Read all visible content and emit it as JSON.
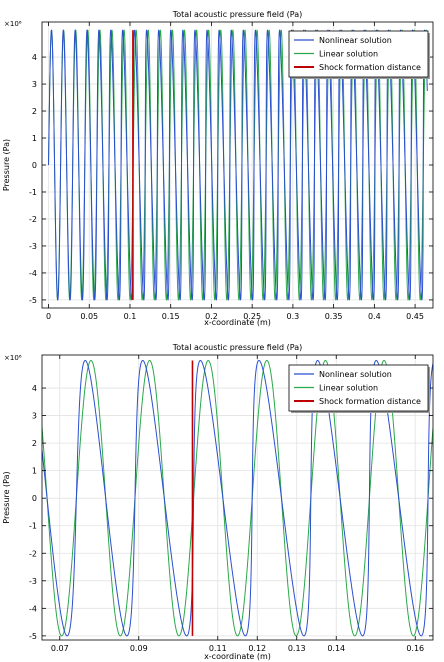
{
  "chart_data": [
    {
      "type": "line",
      "title": "Total acoustic pressure field (Pa)",
      "xlabel": "x-coordinate (m)",
      "ylabel": "Pressure (Pa)",
      "y_multiplier": "×10⁶",
      "xlim": [
        -0.008,
        0.472
      ],
      "ylim": [
        -5.3,
        5.3
      ],
      "x_ticks": [
        0,
        0.05,
        0.1,
        0.15,
        0.2,
        0.25,
        0.3,
        0.35,
        0.4,
        0.45
      ],
      "x_tick_labels": [
        "0",
        "0.05",
        "0.1",
        "0.15",
        "0.2",
        "0.25",
        "0.3",
        "0.35",
        "0.4",
        "0.45"
      ],
      "y_ticks": [
        -5,
        -4,
        -3,
        -2,
        -1,
        0,
        1,
        2,
        3,
        4
      ],
      "y_tick_labels": [
        "-5",
        "-4",
        "-3",
        "-2",
        "-1",
        "0",
        "1",
        "2",
        "3",
        "4"
      ],
      "grid": true,
      "legend_position": "top-right",
      "series": [
        {
          "name": "Nonlinear solution",
          "color": "#2b4fcf",
          "kind": "wave",
          "amplitude": 5,
          "x_start": 0,
          "x_end": 0.465,
          "wavelength": 0.01484,
          "distortion": 0.84,
          "shock_x": 0.1036
        },
        {
          "name": "Linear solution",
          "color": "#2aa84a",
          "kind": "wave",
          "amplitude": 5,
          "x_start": 0,
          "x_end": 0.465,
          "wavelength": 0.01484,
          "distortion": 0
        },
        {
          "name": "Shock formation distance",
          "color": "#c00000",
          "kind": "vline",
          "x": 0.1036,
          "y_range": [
            -5,
            5
          ]
        }
      ]
    },
    {
      "type": "line",
      "title": "Total acoustic pressure field (Pa)",
      "xlabel": "x-coordinate (m)",
      "ylabel": "Pressure (Pa)",
      "y_multiplier": "×10⁶",
      "xlim": [
        0.0655,
        0.1645
      ],
      "ylim": [
        -5.15,
        5.2
      ],
      "x_ticks": [
        0.07,
        0.09,
        0.11,
        0.12,
        0.13,
        0.14,
        0.16
      ],
      "x_tick_labels": [
        "0.07",
        "0.09",
        "0.11",
        "0.12",
        "0.13",
        "0.14",
        "0.16"
      ],
      "y_ticks": [
        -5,
        -4,
        -3,
        -2,
        -1,
        0,
        1,
        2,
        3,
        4
      ],
      "y_tick_labels": [
        "-5",
        "-4",
        "-3",
        "-2",
        "-1",
        "0",
        "1",
        "2",
        "3",
        "4"
      ],
      "grid": true,
      "legend_position": "top-right",
      "series": [
        {
          "name": "Nonlinear solution",
          "color": "#2b4fcf",
          "kind": "wave",
          "amplitude": 5,
          "x_start": 0,
          "x_end": 0.465,
          "wavelength": 0.01484,
          "distortion": 0.84,
          "shock_x": 0.1036
        },
        {
          "name": "Linear solution",
          "color": "#2aa84a",
          "kind": "wave",
          "amplitude": 5,
          "x_start": 0,
          "x_end": 0.465,
          "wavelength": 0.01484,
          "distortion": 0
        },
        {
          "name": "Shock formation distance",
          "color": "#c00000",
          "kind": "vline",
          "x": 0.1036,
          "y_range": [
            -5,
            5
          ]
        }
      ]
    }
  ]
}
